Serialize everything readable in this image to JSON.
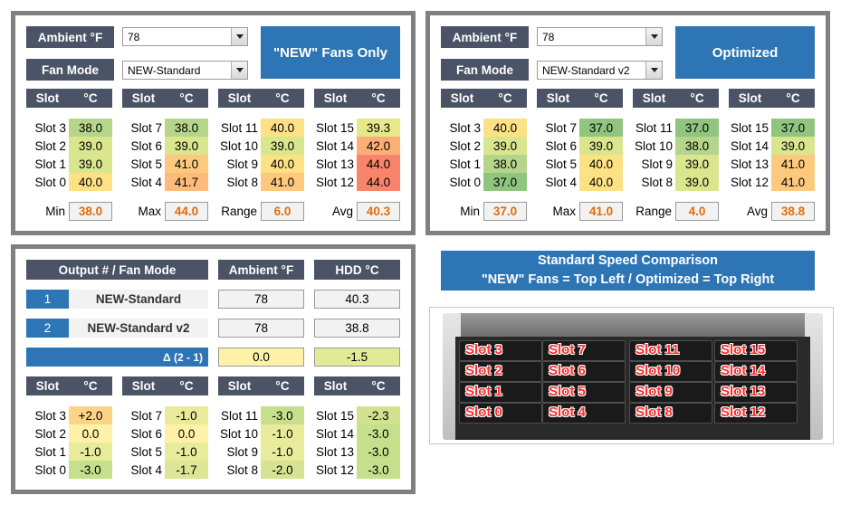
{
  "colors": {
    "header": "#4a5466",
    "accent": "#2e75b6",
    "stat_text": "#e36c09",
    "panel_border": "#808080"
  },
  "left_panel": {
    "ambient_label": "Ambient °F",
    "ambient_value": "78",
    "fanmode_label": "Fan Mode",
    "fanmode_value": "NEW-Standard",
    "button_label": "\"NEW\" Fans Only",
    "col_slot": "Slot",
    "col_c": "°C",
    "groups": [
      {
        "slots": [
          "Slot 3",
          "Slot 2",
          "Slot 1",
          "Slot 0"
        ],
        "values": [
          "38.0",
          "39.0",
          "39.0",
          "40.0"
        ],
        "colors": [
          "#b5d58b",
          "#d9e68e",
          "#d9e68e",
          "#fde184"
        ]
      },
      {
        "slots": [
          "Slot 7",
          "Slot 6",
          "Slot 5",
          "Slot 4"
        ],
        "values": [
          "38.0",
          "39.0",
          "41.0",
          "41.7"
        ],
        "colors": [
          "#b5d58b",
          "#d9e68e",
          "#fdc97d",
          "#fdbb79"
        ]
      },
      {
        "slots": [
          "Slot 11",
          "Slot 10",
          "Slot 9",
          "Slot 8"
        ],
        "values": [
          "40.0",
          "39.0",
          "40.0",
          "41.0"
        ],
        "colors": [
          "#fde184",
          "#d9e68e",
          "#fde184",
          "#fdc97d"
        ]
      },
      {
        "slots": [
          "Slot 15",
          "Slot 14",
          "Slot 13",
          "Slot 12"
        ],
        "values": [
          "39.3",
          "42.0",
          "44.0",
          "44.0"
        ],
        "colors": [
          "#e7e88a",
          "#fcaf75",
          "#f8846b",
          "#f8846b"
        ]
      }
    ],
    "stats": [
      {
        "label": "Min",
        "value": "38.0"
      },
      {
        "label": "Max",
        "value": "44.0"
      },
      {
        "label": "Range",
        "value": "6.0"
      },
      {
        "label": "Avg",
        "value": "40.3"
      }
    ]
  },
  "right_panel": {
    "ambient_label": "Ambient °F",
    "ambient_value": "78",
    "fanmode_label": "Fan Mode",
    "fanmode_value": "NEW-Standard v2",
    "button_label": "Optimized",
    "col_slot": "Slot",
    "col_c": "°C",
    "groups": [
      {
        "slots": [
          "Slot 3",
          "Slot 2",
          "Slot 1",
          "Slot 0"
        ],
        "values": [
          "40.0",
          "39.0",
          "38.0",
          "37.0"
        ],
        "colors": [
          "#fde184",
          "#d9e68e",
          "#b5d58b",
          "#8fc57f"
        ]
      },
      {
        "slots": [
          "Slot 7",
          "Slot 6",
          "Slot 5",
          "Slot 4"
        ],
        "values": [
          "37.0",
          "39.0",
          "40.0",
          "40.0"
        ],
        "colors": [
          "#8fc57f",
          "#d9e68e",
          "#fde184",
          "#fde184"
        ]
      },
      {
        "slots": [
          "Slot 11",
          "Slot 10",
          "Slot 9",
          "Slot 8"
        ],
        "values": [
          "37.0",
          "38.0",
          "39.0",
          "39.0"
        ],
        "colors": [
          "#8fc57f",
          "#b5d58b",
          "#d9e68e",
          "#d9e68e"
        ]
      },
      {
        "slots": [
          "Slot 15",
          "Slot 14",
          "Slot 13",
          "Slot 12"
        ],
        "values": [
          "37.0",
          "39.0",
          "41.0",
          "41.0"
        ],
        "colors": [
          "#8fc57f",
          "#d9e68e",
          "#fdc97d",
          "#fdc97d"
        ]
      }
    ],
    "stats": [
      {
        "label": "Min",
        "value": "37.0"
      },
      {
        "label": "Max",
        "value": "41.0"
      },
      {
        "label": "Range",
        "value": "4.0"
      },
      {
        "label": "Avg",
        "value": "38.8"
      }
    ]
  },
  "bottom_panel": {
    "col_output": "Output # / Fan Mode",
    "col_ambient": "Ambient °F",
    "col_hdd": "HDD °C",
    "rows": [
      {
        "num": "1",
        "mode": "NEW-Standard",
        "ambient": "78",
        "hdd": "40.3"
      },
      {
        "num": "2",
        "mode": "NEW-Standard v2",
        "ambient": "78",
        "hdd": "38.8"
      }
    ],
    "delta_label": "Δ (2 - 1)",
    "delta_ambient": "0.0",
    "delta_hdd": "-1.5",
    "col_slot": "Slot",
    "col_c": "°C",
    "groups": [
      {
        "slots": [
          "Slot 3",
          "Slot 2",
          "Slot 1",
          "Slot 0"
        ],
        "values": [
          "+2.0",
          "0.0",
          "-1.0",
          "-3.0"
        ],
        "colors": [
          "#fcd488",
          "#fff2a8",
          "#e8eb9a",
          "#c6df8c"
        ]
      },
      {
        "slots": [
          "Slot 7",
          "Slot 6",
          "Slot 5",
          "Slot 4"
        ],
        "values": [
          "-1.0",
          "0.0",
          "-1.0",
          "-1.7"
        ],
        "colors": [
          "#e8eb9a",
          "#fff2a8",
          "#e8eb9a",
          "#dde596"
        ]
      },
      {
        "slots": [
          "Slot 11",
          "Slot 10",
          "Slot 9",
          "Slot 8"
        ],
        "values": [
          "-3.0",
          "-1.0",
          "-1.0",
          "-2.0"
        ],
        "colors": [
          "#c6df8c",
          "#e8eb9a",
          "#e8eb9a",
          "#d6e392"
        ]
      },
      {
        "slots": [
          "Slot 15",
          "Slot 14",
          "Slot 13",
          "Slot 12"
        ],
        "values": [
          "-2.3",
          "-3.0",
          "-3.0",
          "-3.0"
        ],
        "colors": [
          "#d1e18f",
          "#c6df8c",
          "#c6df8c",
          "#c6df8c"
        ]
      }
    ]
  },
  "comparison": {
    "title_line1": "Standard Speed Comparison",
    "title_line2": "\"NEW\" Fans = Top Left / Optimized = Top Right",
    "bays": [
      [
        "Slot 3",
        "Slot 7",
        "Slot 11",
        "Slot 15"
      ],
      [
        "Slot 2",
        "Slot 6",
        "Slot 10",
        "Slot 14"
      ],
      [
        "Slot 1",
        "Slot 5",
        "Slot 9",
        "Slot 13"
      ],
      [
        "Slot 0",
        "Slot 4",
        "Slot 8",
        "Slot 12"
      ]
    ]
  }
}
